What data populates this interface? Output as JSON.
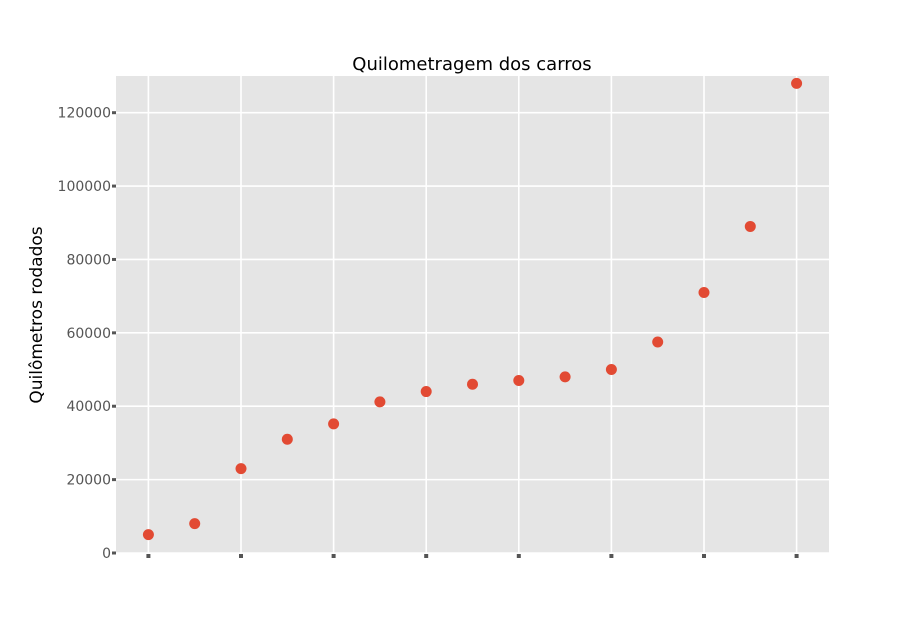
{
  "chart_data": {
    "type": "scatter",
    "title": "Quilometragem dos carros",
    "xlabel": "",
    "ylabel": "Quilômetros rodados",
    "ylim": [
      0,
      130000
    ],
    "xlim": [
      0.3,
      15.7
    ],
    "yticks": [
      0,
      20000,
      40000,
      60000,
      80000,
      100000,
      120000
    ],
    "ytick_labels": [
      "0",
      "20000",
      "40000",
      "60000",
      "80000",
      "100000",
      "120000"
    ],
    "xticks": [
      1,
      3,
      5,
      7,
      9,
      11,
      13,
      15
    ],
    "grid": true,
    "series": [
      {
        "color": "#e24a33",
        "points": [
          {
            "x": 1,
            "y": 5000
          },
          {
            "x": 2,
            "y": 8000
          },
          {
            "x": 3,
            "y": 23000
          },
          {
            "x": 4,
            "y": 31000
          },
          {
            "x": 5,
            "y": 35200
          },
          {
            "x": 6,
            "y": 41200
          },
          {
            "x": 7,
            "y": 44000
          },
          {
            "x": 8,
            "y": 46000
          },
          {
            "x": 9,
            "y": 47000
          },
          {
            "x": 10,
            "y": 48000
          },
          {
            "x": 11,
            "y": 50000
          },
          {
            "x": 12,
            "y": 57500
          },
          {
            "x": 13,
            "y": 71000
          },
          {
            "x": 14,
            "y": 89000
          },
          {
            "x": 15,
            "y": 128000
          }
        ]
      }
    ]
  },
  "colors": {
    "panel": "#e5e5e5",
    "grid": "#ffffff",
    "tick": "#555555",
    "marker": "#e24a33"
  }
}
